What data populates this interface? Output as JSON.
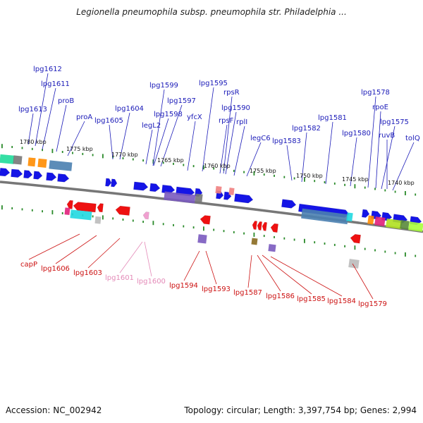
{
  "title": "Legionella pneumophila subsp. pneumophila str. Philadelphia ...",
  "footer": {
    "accession": "Accession: NC_002942",
    "summary": "Topology: circular; Length: 3,397,754 bp; Genes: 2,994"
  },
  "colors": {
    "forward_label": "#1a1ab8",
    "reverse_label": "#cc1111",
    "faded_label": "#e48ab8",
    "forward_gene": "#1515e6",
    "reverse_gene": "#ee1111",
    "backbone": "#777777",
    "tick": "#2a8a2a"
  },
  "ruler_labels": [
    "1780 kbp",
    "1775 kbp",
    "1770 kbp",
    "1765 kbp",
    "1760 kbp",
    "1755 kbp",
    "1750 kbp",
    "1745 kbp",
    "1740 kbp"
  ],
  "top_labels": [
    "lpg1612",
    "lpg1611",
    "lpg1613",
    "proB",
    "proA",
    "lpg1605",
    "lpg1604",
    "lpg1599",
    "lpg1597",
    "lpg1598",
    "legL2",
    "yfcX",
    "lpg1595",
    "rpsR",
    "lpg1590",
    "rpsF",
    "rplI",
    "legC6",
    "lpg1583",
    "lpg1582",
    "lpg1581",
    "lpg1580",
    "lpg1578",
    "rpoE",
    "lpg1575",
    "ruvB",
    "tolQ"
  ],
  "bottom_labels": [
    "capP",
    "lpg1606",
    "lpg1603",
    "lpg1601",
    "lpg1600",
    "lpg1594",
    "lpg1593",
    "lpg1587",
    "lpg1586",
    "lpg1585",
    "lpg1584",
    "lpg1579"
  ],
  "faded_labels": [
    "lpg1601",
    "lpg1600"
  ]
}
